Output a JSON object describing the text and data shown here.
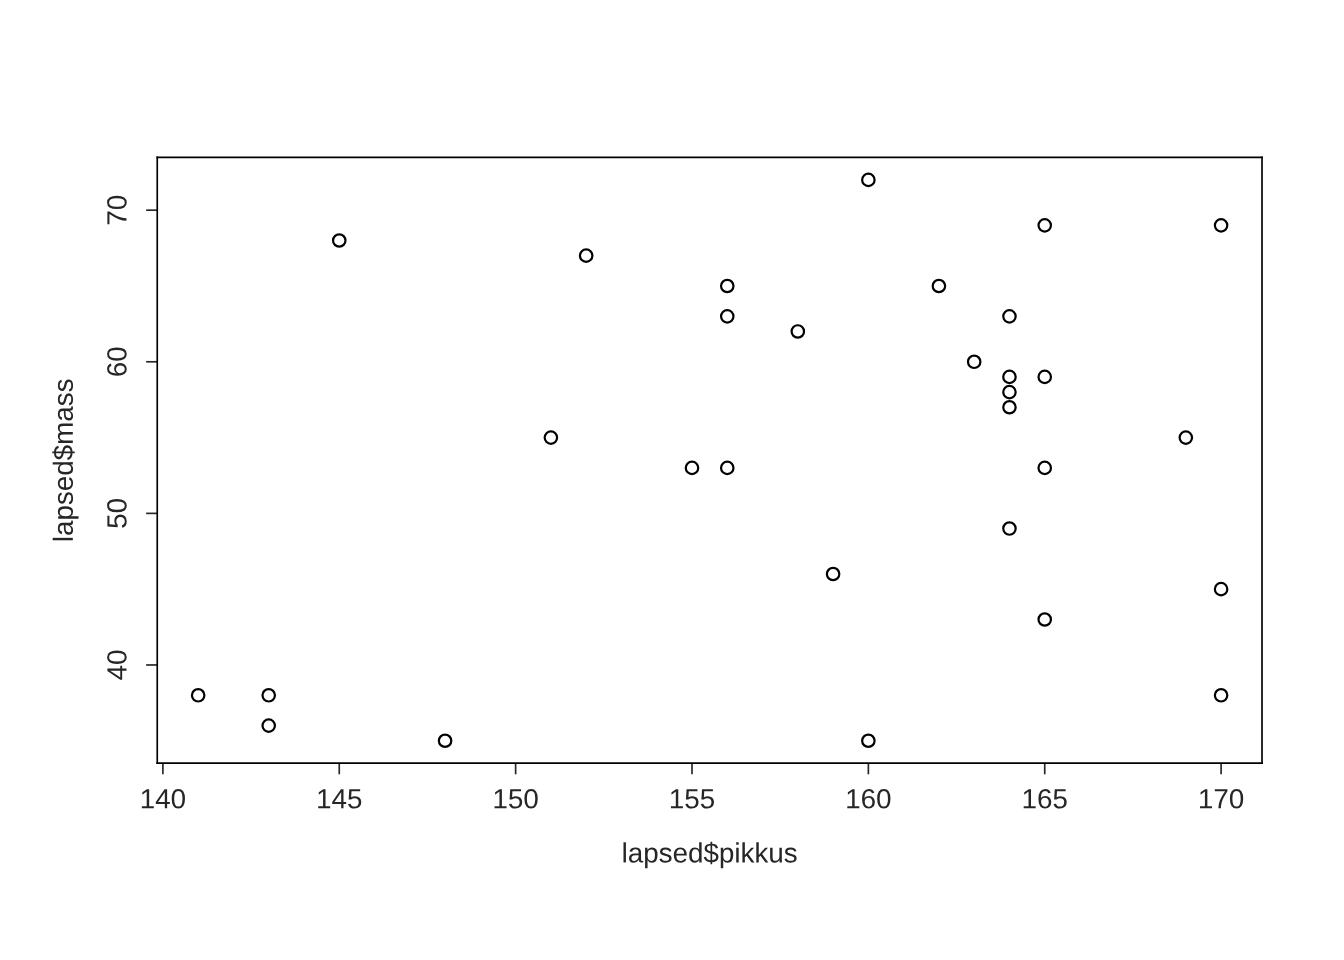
{
  "chart_data": {
    "type": "scatter",
    "xlabel": "lapsed$pikkus",
    "ylabel": "lapsed$mass",
    "x": [
      141,
      143,
      143,
      145,
      148,
      151,
      152,
      155,
      156,
      156,
      156,
      158,
      159,
      160,
      160,
      162,
      163,
      164,
      164,
      164,
      164,
      164,
      165,
      165,
      165,
      165,
      169,
      170,
      170,
      170
    ],
    "series": [
      {
        "color": "#000000",
        "values": [
          38,
          38,
          36,
          68,
          35,
          55,
          67,
          53,
          65,
          63,
          53,
          62,
          46,
          72,
          35,
          65,
          60,
          63,
          59,
          58,
          57,
          49,
          69,
          59,
          53,
          43,
          55,
          69,
          45,
          38
        ]
      }
    ],
    "xlim": [
      139.84,
      171.16
    ],
    "ylim": [
      33.52,
      73.48
    ],
    "xticks": [
      140,
      145,
      150,
      155,
      160,
      165,
      170
    ],
    "yticks": [
      40,
      50,
      60,
      70
    ],
    "marker": "circle",
    "grid": false,
    "legend": false
  }
}
